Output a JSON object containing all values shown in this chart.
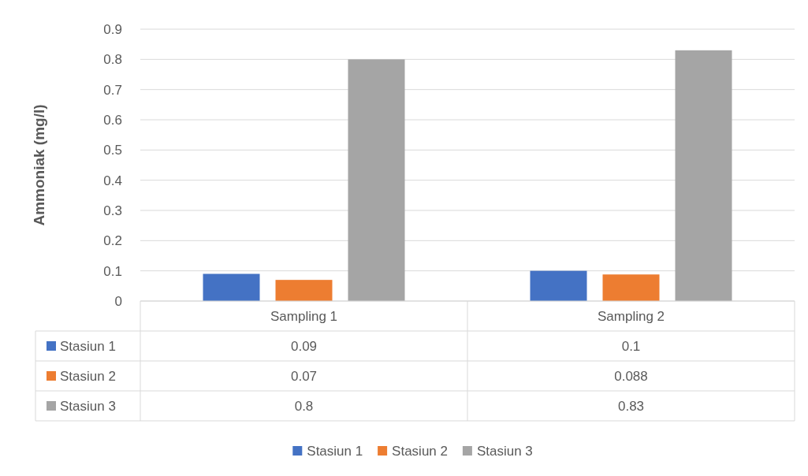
{
  "chart_data": {
    "type": "bar",
    "ylabel": "Ammoniak (mg/l)",
    "categories": [
      "Sampling 1",
      "Sampling 2"
    ],
    "series": [
      {
        "name": "Stasiun 1",
        "color": "#4472c4",
        "values": [
          0.09,
          0.1
        ]
      },
      {
        "name": "Stasiun 2",
        "color": "#ed7d31",
        "values": [
          0.07,
          0.088
        ]
      },
      {
        "name": "Stasiun 3",
        "color": "#a5a5a5",
        "values": [
          0.8,
          0.83
        ]
      }
    ],
    "ylim": [
      0,
      0.9
    ],
    "yticks": [
      0,
      0.1,
      0.2,
      0.3,
      0.4,
      0.5,
      0.6,
      0.7,
      0.8,
      0.9
    ],
    "grid": "y",
    "legend": "bottom",
    "data_labels": true
  }
}
